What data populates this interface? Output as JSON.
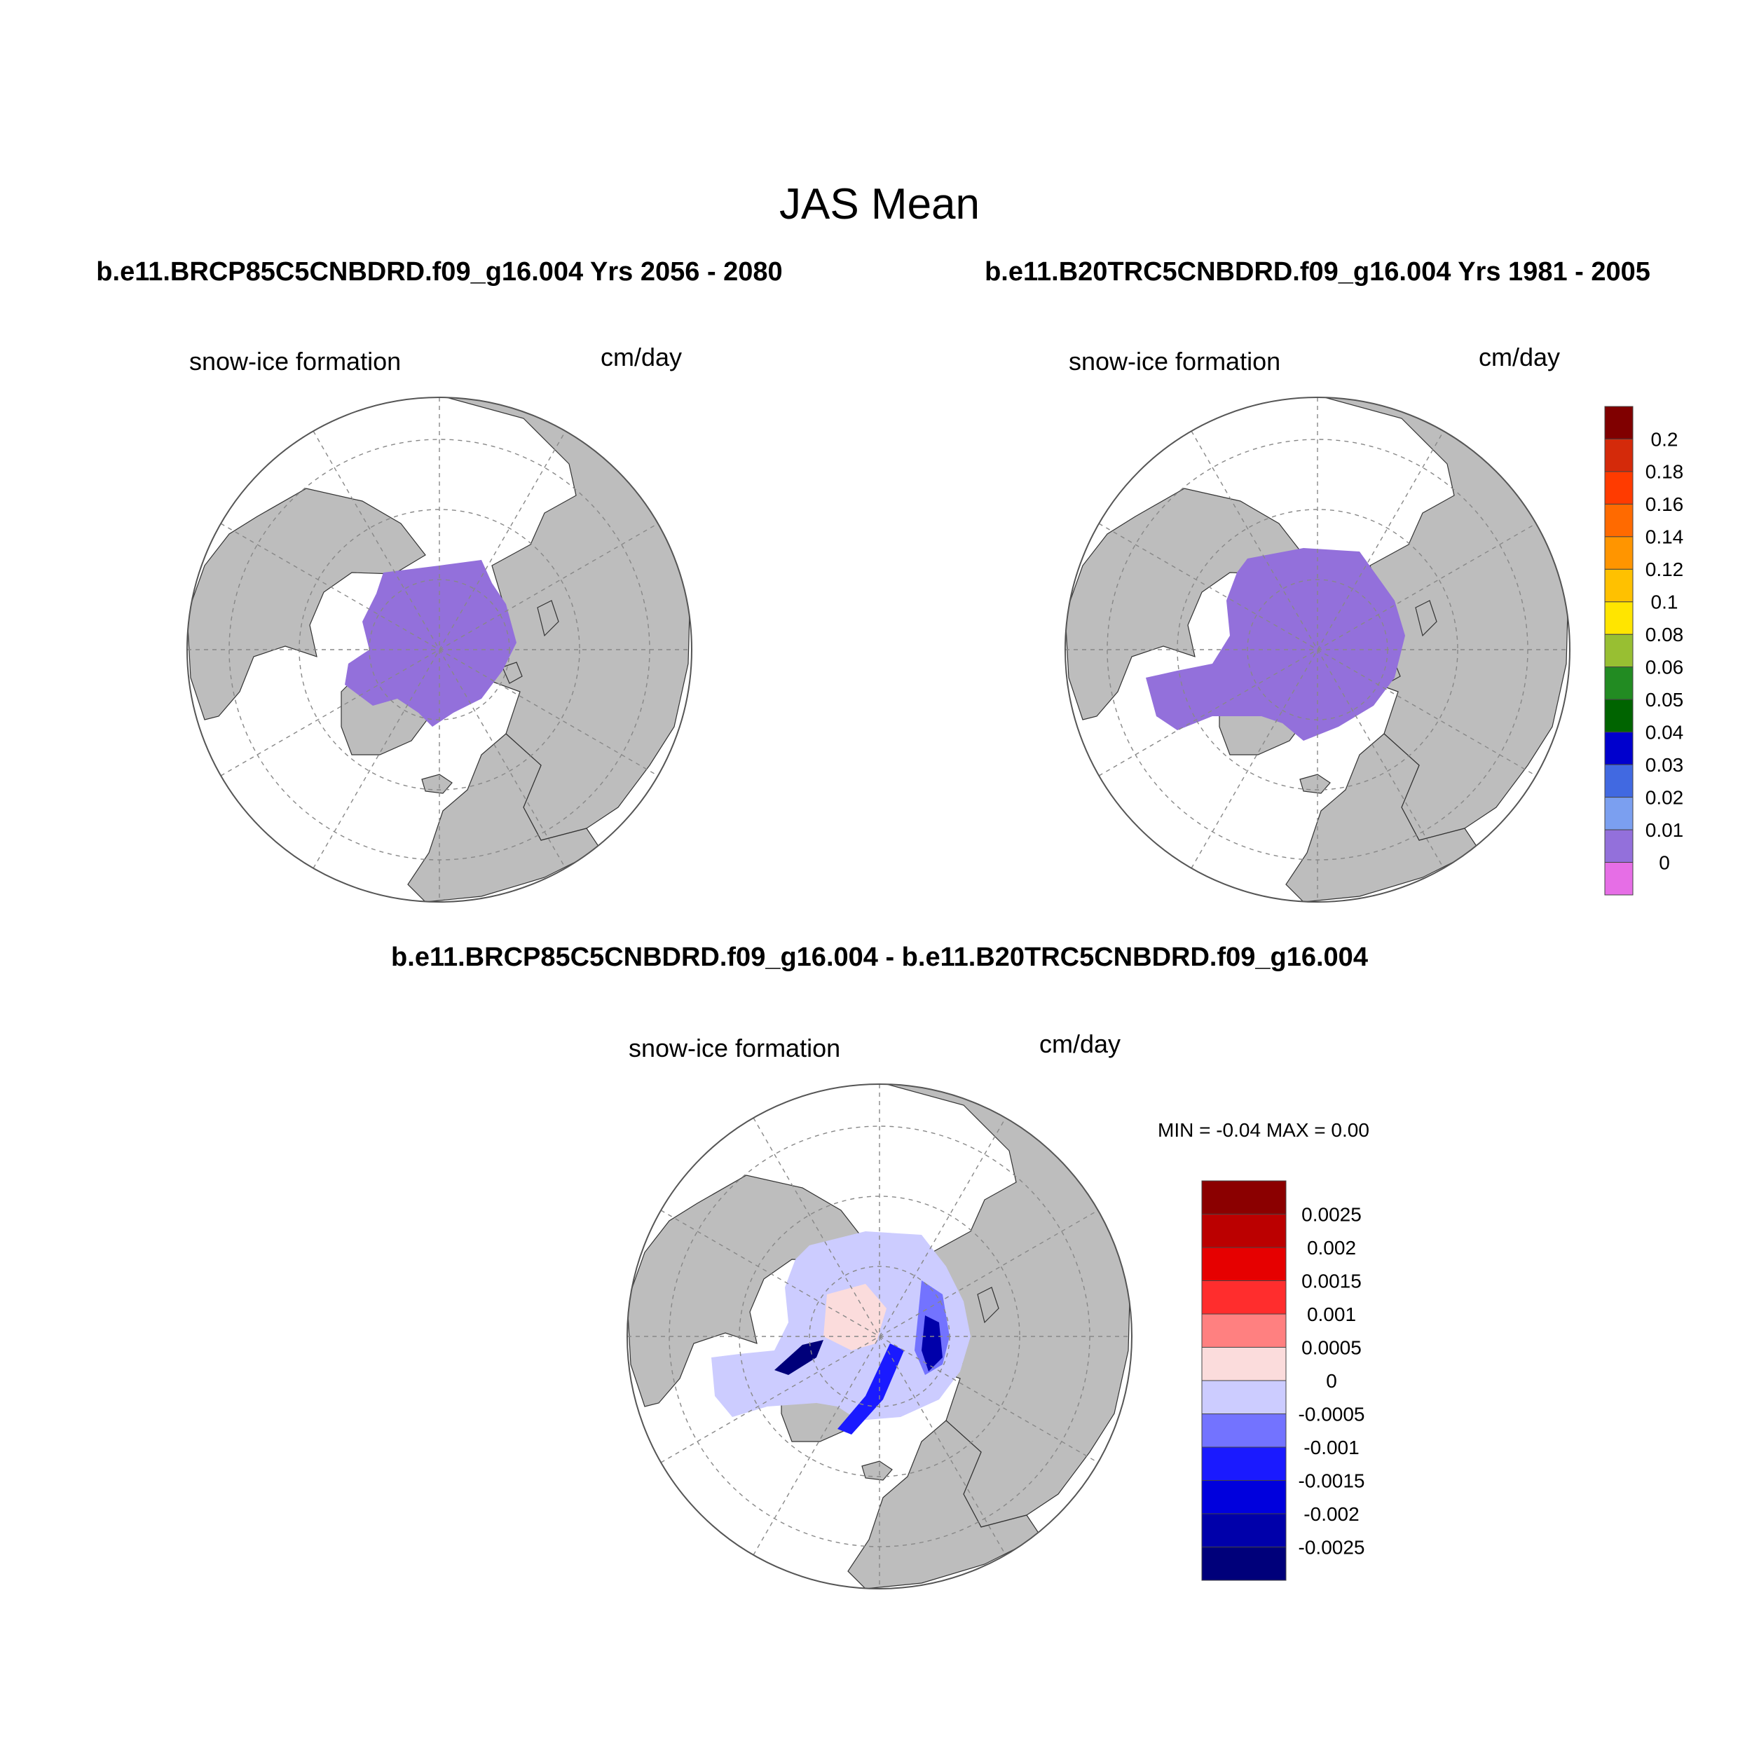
{
  "main_title": "JAS Mean",
  "panels": [
    {
      "title": "b.e11.BRCP85C5CNBDRD.f09_g16.004  Yrs 2056 - 2080",
      "left_label": "snow-ice formation",
      "right_label": "cm/day",
      "fill_color": "#9370db"
    },
    {
      "title": "b.e11.B20TRC5CNBDRD.f09_g16.004  Yrs 1981 - 2005",
      "left_label": "snow-ice formation",
      "right_label": "cm/day",
      "fill_color": "#9370db"
    },
    {
      "title": "b.e11.BRCP85C5CNBDRD.f09_g16.004 - b.e11.B20TRC5CNBDRD.f09_g16.004",
      "left_label": "snow-ice formation",
      "right_label": "cm/day",
      "stats": "MIN =  -0.04 MAX =   0.00"
    }
  ],
  "colorbar_top": {
    "labels": [
      "0.2",
      "0.18",
      "0.16",
      "0.14",
      "0.12",
      "0.1",
      "0.08",
      "0.06",
      "0.05",
      "0.04",
      "0.03",
      "0.02",
      "0.01",
      "0"
    ],
    "colors": [
      "#800000",
      "#d42a0a",
      "#ff3b00",
      "#ff6a00",
      "#ff9500",
      "#ffc100",
      "#ffe500",
      "#98bf32",
      "#228b22",
      "#006400",
      "#0000cd",
      "#4169e1",
      "#7b9ff0",
      "#9370db",
      "#e66ee6"
    ]
  },
  "colorbar_diff": {
    "labels": [
      "0.0025",
      "0.002",
      "0.0015",
      "0.001",
      "0.0005",
      "0",
      "-0.0005",
      "-0.001",
      "-0.0015",
      "-0.002",
      "-0.0025"
    ],
    "colors": [
      "#8b0000",
      "#bb0000",
      "#e60000",
      "#ff2d2d",
      "#ff8080",
      "#fbdcdc",
      "#ccccff",
      "#7373ff",
      "#1a1aff",
      "#0000dd",
      "#0000aa",
      "#00007a"
    ]
  },
  "map_colors": {
    "land": "#bdbdbd",
    "ocean": "#ffffff"
  }
}
